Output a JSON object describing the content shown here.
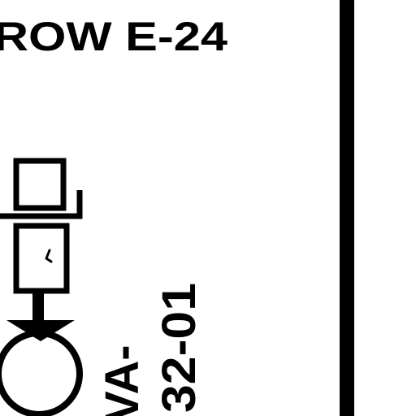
{
  "drawing": {
    "heading": "ROW E-24",
    "valve_tag": {
      "prefix": "VA-",
      "number": "32-01"
    }
  },
  "colors": {
    "ink": "#000000",
    "paper": "#ffffff"
  }
}
